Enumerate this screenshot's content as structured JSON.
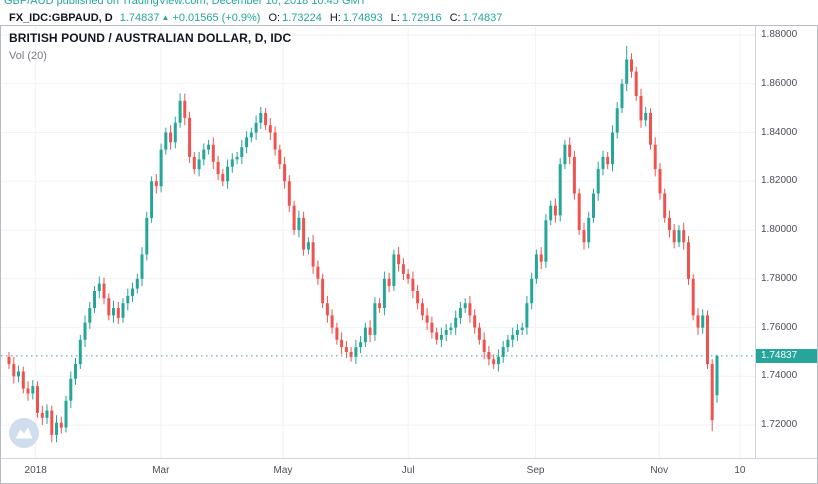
{
  "caption": {
    "text": "GBP/AUD published on TradingView.com, December 10, 2018 10:45 GMT"
  },
  "header": {
    "symbol": "FX_IDC:GBPAUD, D",
    "last": "1.74837",
    "direction_icon": "▲",
    "change": "+0.01565 (+0.9%)",
    "ohlc": [
      {
        "label": "O:",
        "value": "1.73224"
      },
      {
        "label": "H:",
        "value": "1.74893"
      },
      {
        "label": "L:",
        "value": "1.72916"
      },
      {
        "label": "C:",
        "value": "1.74837"
      }
    ]
  },
  "colors": {
    "up": "#26a69a",
    "down": "#ef5350",
    "grid": "#f0f2f6",
    "axis_text": "#4a4f57",
    "accent": "#26a69a"
  },
  "chart_data": {
    "type": "candlestick",
    "title": "BRITISH POUND / AUSTRALIAN DOLLAR, D, IDC",
    "symbol": "FX_IDC:GBPAUD",
    "timeframe": "D",
    "indicator": "Vol (20)",
    "ylim": [
      1.7065,
      1.8837
    ],
    "y_ticks": [
      1.72,
      1.74,
      1.76,
      1.78,
      1.8,
      1.82,
      1.84,
      1.86,
      1.88
    ],
    "y_tick_decimals": 5,
    "x_ticks": [
      {
        "label": "2018",
        "f": 0.046
      },
      {
        "label": "Mar",
        "f": 0.212
      },
      {
        "label": "May",
        "f": 0.374
      },
      {
        "label": "Jul",
        "f": 0.54
      },
      {
        "label": "Sep",
        "f": 0.709
      },
      {
        "label": "Nov",
        "f": 0.873
      },
      {
        "label": "10",
        "f": 0.98
      }
    ],
    "current_price": 1.74837,
    "current_price_label": "1.74837",
    "last_bar": {
      "open": 1.73224,
      "high": 1.74893,
      "low": 1.72916,
      "close": 1.74837,
      "change": "+0.01565",
      "change_pct": "+0.9%"
    },
    "candles": [
      [
        1.748,
        1.75,
        1.743,
        1.745
      ],
      [
        1.745,
        1.748,
        1.737,
        1.74
      ],
      [
        1.74,
        1.7445,
        1.7375,
        1.742
      ],
      [
        1.742,
        1.744,
        1.733,
        1.735
      ],
      [
        1.735,
        1.738,
        1.73,
        1.733
      ],
      [
        1.733,
        1.7385,
        1.7305,
        1.736
      ],
      [
        1.736,
        1.738,
        1.723,
        1.725
      ],
      [
        1.725,
        1.728,
        1.72,
        1.723
      ],
      [
        1.723,
        1.7285,
        1.7205,
        1.726
      ],
      [
        1.726,
        1.728,
        1.713,
        1.716
      ],
      [
        1.716,
        1.724,
        1.713,
        1.721
      ],
      [
        1.721,
        1.7235,
        1.7165,
        1.719
      ],
      [
        1.719,
        1.732,
        1.717,
        1.73
      ],
      [
        1.73,
        1.742,
        1.727,
        1.739
      ],
      [
        1.739,
        1.7475,
        1.7365,
        1.745
      ],
      [
        1.745,
        1.757,
        1.743,
        1.755
      ],
      [
        1.755,
        1.765,
        1.752,
        1.762
      ],
      [
        1.762,
        1.7705,
        1.7595,
        1.768
      ],
      [
        1.768,
        1.777,
        1.766,
        1.775
      ],
      [
        1.775,
        1.781,
        1.772,
        1.778
      ],
      [
        1.778,
        1.7805,
        1.7695,
        1.772
      ],
      [
        1.772,
        1.774,
        1.763,
        1.765
      ],
      [
        1.765,
        1.771,
        1.762,
        1.768
      ],
      [
        1.768,
        1.7705,
        1.7615,
        1.764
      ],
      [
        1.764,
        1.772,
        1.762,
        1.77
      ],
      [
        1.77,
        1.776,
        1.767,
        1.773
      ],
      [
        1.773,
        1.7785,
        1.7705,
        1.776
      ],
      [
        1.776,
        1.782,
        1.774,
        1.78
      ],
      [
        1.78,
        1.793,
        1.777,
        1.79
      ],
      [
        1.79,
        1.8075,
        1.7875,
        1.805
      ],
      [
        1.805,
        1.822,
        1.803,
        1.82
      ],
      [
        1.82,
        1.823,
        1.815,
        1.818
      ],
      [
        1.818,
        1.8355,
        1.8155,
        1.833
      ],
      [
        1.833,
        1.842,
        1.831,
        1.84
      ],
      [
        1.84,
        1.843,
        1.833,
        1.836
      ],
      [
        1.836,
        1.8465,
        1.8335,
        1.844
      ],
      [
        1.844,
        1.856,
        1.842,
        1.853
      ],
      [
        1.853,
        1.856,
        1.843,
        1.846
      ],
      [
        1.846,
        1.8485,
        1.8275,
        1.83
      ],
      [
        1.83,
        1.832,
        1.823,
        1.825
      ],
      [
        1.825,
        1.832,
        1.822,
        1.829
      ],
      [
        1.829,
        1.8355,
        1.8265,
        1.833
      ],
      [
        1.833,
        1.837,
        1.831,
        1.835
      ],
      [
        1.835,
        1.838,
        1.825,
        1.828
      ],
      [
        1.828,
        1.8305,
        1.8205,
        1.823
      ],
      [
        1.823,
        1.825,
        1.818,
        1.82
      ],
      [
        1.82,
        1.829,
        1.817,
        1.826
      ],
      [
        1.826,
        1.8315,
        1.8235,
        1.829
      ],
      [
        1.829,
        1.832,
        1.827,
        1.83
      ],
      [
        1.83,
        1.837,
        1.827,
        1.834
      ],
      [
        1.834,
        1.8405,
        1.8315,
        1.838
      ],
      [
        1.838,
        1.842,
        1.836,
        1.84
      ],
      [
        1.84,
        1.847,
        1.837,
        1.844
      ],
      [
        1.844,
        1.8505,
        1.8415,
        1.848
      ],
      [
        1.848,
        1.85,
        1.841,
        1.843
      ],
      [
        1.843,
        1.846,
        1.837,
        1.84
      ],
      [
        1.84,
        1.8425,
        1.8305,
        1.833
      ],
      [
        1.833,
        1.835,
        1.825,
        1.827
      ],
      [
        1.827,
        1.83,
        1.817,
        1.82
      ],
      [
        1.82,
        1.8225,
        1.8075,
        1.81
      ],
      [
        1.81,
        1.812,
        1.798,
        1.8
      ],
      [
        1.8,
        1.808,
        1.797,
        1.805
      ],
      [
        1.805,
        1.8075,
        1.7895,
        1.792
      ],
      [
        1.792,
        1.797,
        1.79,
        1.795
      ],
      [
        1.795,
        1.798,
        1.782,
        1.785
      ],
      [
        1.785,
        1.7875,
        1.7775,
        1.78
      ],
      [
        1.78,
        1.782,
        1.768,
        1.77
      ],
      [
        1.77,
        1.773,
        1.762,
        1.765
      ],
      [
        1.765,
        1.7675,
        1.7575,
        1.76
      ],
      [
        1.76,
        1.762,
        1.753,
        1.755
      ],
      [
        1.755,
        1.758,
        1.749,
        1.752
      ],
      [
        1.752,
        1.7545,
        1.7475,
        1.75
      ],
      [
        1.75,
        1.752,
        1.746,
        1.748
      ],
      [
        1.748,
        1.755,
        1.745,
        1.752
      ],
      [
        1.752,
        1.7565,
        1.7495,
        1.754
      ],
      [
        1.754,
        1.762,
        1.752,
        1.76
      ],
      [
        1.76,
        1.763,
        1.754,
        1.757
      ],
      [
        1.757,
        1.7725,
        1.7545,
        1.77
      ],
      [
        1.77,
        1.772,
        1.766,
        1.768
      ],
      [
        1.768,
        1.783,
        1.765,
        1.78
      ],
      [
        1.78,
        1.7825,
        1.7745,
        1.777
      ],
      [
        1.777,
        1.792,
        1.775,
        1.79
      ],
      [
        1.79,
        1.793,
        1.783,
        1.786
      ],
      [
        1.786,
        1.7885,
        1.7795,
        1.782
      ],
      [
        1.782,
        1.784,
        1.778,
        1.78
      ],
      [
        1.78,
        1.783,
        1.772,
        1.775
      ],
      [
        1.775,
        1.7775,
        1.7675,
        1.77
      ],
      [
        1.77,
        1.772,
        1.763,
        1.765
      ],
      [
        1.765,
        1.768,
        1.759,
        1.762
      ],
      [
        1.762,
        1.7645,
        1.7555,
        1.758
      ],
      [
        1.758,
        1.76,
        1.753,
        1.755
      ],
      [
        1.755,
        1.76,
        1.752,
        1.757
      ],
      [
        1.757,
        1.7615,
        1.7545,
        1.759
      ],
      [
        1.759,
        1.762,
        1.757,
        1.76
      ],
      [
        1.76,
        1.767,
        1.757,
        1.764
      ],
      [
        1.764,
        1.7705,
        1.7615,
        1.768
      ],
      [
        1.768,
        1.772,
        1.766,
        1.77
      ],
      [
        1.77,
        1.773,
        1.762,
        1.765
      ],
      [
        1.765,
        1.7675,
        1.7575,
        1.76
      ],
      [
        1.76,
        1.762,
        1.753,
        1.755
      ],
      [
        1.755,
        1.758,
        1.747,
        1.75
      ],
      [
        1.75,
        1.7525,
        1.7445,
        1.747
      ],
      [
        1.747,
        1.749,
        1.743,
        1.745
      ],
      [
        1.745,
        1.751,
        1.742,
        1.748
      ],
      [
        1.748,
        1.7545,
        1.7455,
        1.752
      ],
      [
        1.752,
        1.757,
        1.75,
        1.755
      ],
      [
        1.755,
        1.76,
        1.752,
        1.757
      ],
      [
        1.757,
        1.7615,
        1.7545,
        1.759
      ],
      [
        1.759,
        1.762,
        1.757,
        1.76
      ],
      [
        1.76,
        1.773,
        1.757,
        1.77
      ],
      [
        1.77,
        1.7825,
        1.7675,
        1.78
      ],
      [
        1.78,
        1.792,
        1.778,
        1.79
      ],
      [
        1.79,
        1.793,
        1.784,
        1.787
      ],
      [
        1.787,
        1.8065,
        1.7845,
        1.804
      ],
      [
        1.804,
        1.812,
        1.802,
        1.81
      ],
      [
        1.81,
        1.813,
        1.803,
        1.806
      ],
      [
        1.806,
        1.8295,
        1.8035,
        1.827
      ],
      [
        1.827,
        1.837,
        1.825,
        1.835
      ],
      [
        1.835,
        1.838,
        1.827,
        1.83
      ],
      [
        1.83,
        1.8325,
        1.8125,
        1.815
      ],
      [
        1.815,
        1.817,
        1.798,
        1.8
      ],
      [
        1.8,
        1.803,
        1.792,
        1.795
      ],
      [
        1.795,
        1.8075,
        1.7925,
        1.805
      ],
      [
        1.805,
        1.817,
        1.803,
        1.815
      ],
      [
        1.815,
        1.828,
        1.812,
        1.825
      ],
      [
        1.825,
        1.8325,
        1.8225,
        1.83
      ],
      [
        1.83,
        1.832,
        1.825,
        1.827
      ],
      [
        1.827,
        1.843,
        1.824,
        1.84
      ],
      [
        1.84,
        1.8525,
        1.8375,
        1.85
      ],
      [
        1.85,
        1.862,
        1.848,
        1.86
      ],
      [
        1.86,
        1.8755,
        1.857,
        1.87
      ],
      [
        1.87,
        1.8725,
        1.8625,
        1.865
      ],
      [
        1.865,
        1.867,
        1.853,
        1.855
      ],
      [
        1.855,
        1.858,
        1.842,
        1.845
      ],
      [
        1.845,
        1.8505,
        1.8425,
        1.848
      ],
      [
        1.848,
        1.85,
        1.833,
        1.835
      ],
      [
        1.835,
        1.838,
        1.822,
        1.825
      ],
      [
        1.825,
        1.8275,
        1.8125,
        1.815
      ],
      [
        1.815,
        1.817,
        1.803,
        1.805
      ],
      [
        1.805,
        1.808,
        1.797,
        1.8
      ],
      [
        1.8,
        1.8025,
        1.7925,
        1.795
      ],
      [
        1.795,
        1.802,
        1.793,
        1.8
      ],
      [
        1.8,
        1.803,
        1.792,
        1.795
      ],
      [
        1.795,
        1.7975,
        1.7775,
        1.78
      ],
      [
        1.78,
        1.782,
        1.763,
        1.765
      ],
      [
        1.765,
        1.768,
        1.757,
        1.76
      ],
      [
        1.76,
        1.7675,
        1.7575,
        1.765
      ],
      [
        1.765,
        1.767,
        1.743,
        1.745
      ],
      [
        1.745,
        1.747,
        1.7175,
        1.722
      ],
      [
        1.73224,
        1.74893,
        1.72916,
        1.74837
      ]
    ]
  }
}
